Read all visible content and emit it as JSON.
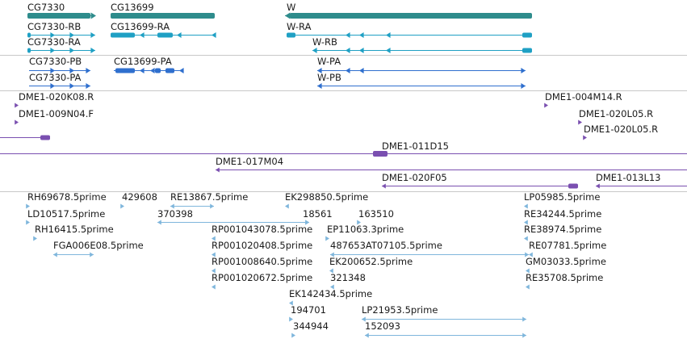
{
  "colors": {
    "gene": "#2e8c8c",
    "transcript": "#1fa0c4",
    "protein": "#2f6fce",
    "clone": "#7a4fb0",
    "est": "#7fb6dc",
    "divider": "#c8c8c8"
  },
  "genes": [
    {
      "id": "g1",
      "label": "CG7330"
    },
    {
      "id": "g2",
      "label": "CG13699"
    },
    {
      "id": "g3",
      "label": "W"
    }
  ],
  "transcripts": [
    {
      "id": "t1",
      "label": "CG7330-RB"
    },
    {
      "id": "t2",
      "label": "CG7330-RA"
    },
    {
      "id": "t3",
      "label": "CG13699-RA"
    },
    {
      "id": "t4",
      "label": "W-RA"
    },
    {
      "id": "t5",
      "label": "W-RB"
    }
  ],
  "proteins": [
    {
      "id": "p1",
      "label": "CG7330-PB"
    },
    {
      "id": "p2",
      "label": "CG7330-PA"
    },
    {
      "id": "p3",
      "label": "CG13699-PA"
    },
    {
      "id": "p4",
      "label": "W-PA"
    },
    {
      "id": "p5",
      "label": "W-PB"
    }
  ],
  "clones": [
    {
      "id": "c1",
      "label": "DME1-020K08.R"
    },
    {
      "id": "c2",
      "label": "DME1-009N04.F"
    },
    {
      "id": "c3",
      "label": "DME1-004M14.R"
    },
    {
      "id": "c4",
      "label": "DME1-020L05.R"
    },
    {
      "id": "c5",
      "label": "DME1-020L05.R"
    },
    {
      "id": "c6",
      "label": ""
    },
    {
      "id": "c7",
      "label": "DME1-011D15"
    },
    {
      "id": "c8",
      "label": "DME1-017M04"
    },
    {
      "id": "c9",
      "label": "DME1-020F05"
    },
    {
      "id": "c10",
      "label": "DME1-013L13"
    }
  ],
  "ests": [
    {
      "id": "e1",
      "label": "RH69678.5prime"
    },
    {
      "id": "e2",
      "label": "429608"
    },
    {
      "id": "e3",
      "label": "RE13867.5prime"
    },
    {
      "id": "e4",
      "label": "EK298850.5prime"
    },
    {
      "id": "e5",
      "label": "LP05985.5prime"
    },
    {
      "id": "e6",
      "label": "LD10517.5prime"
    },
    {
      "id": "e7",
      "label": "370398"
    },
    {
      "id": "e8",
      "label": "18561"
    },
    {
      "id": "e9",
      "label": "163510"
    },
    {
      "id": "e10",
      "label": "RE34244.5prime"
    },
    {
      "id": "e11",
      "label": "RH16415.5prime"
    },
    {
      "id": "e12",
      "label": "RP001043078.5prime"
    },
    {
      "id": "e13",
      "label": "EP11063.3prime"
    },
    {
      "id": "e14",
      "label": "RE38974.5prime"
    },
    {
      "id": "e15",
      "label": "FGA006E08.5prime"
    },
    {
      "id": "e16",
      "label": "RP001020408.5prime"
    },
    {
      "id": "e17",
      "label": "487653AT07105.5prime"
    },
    {
      "id": "e18",
      "label": "RE07781.5prime"
    },
    {
      "id": "e19",
      "label": "RP001008640.5prime"
    },
    {
      "id": "e20",
      "label": "EK200652.5prime"
    },
    {
      "id": "e21",
      "label": "GM03033.5prime"
    },
    {
      "id": "e22",
      "label": "321348"
    },
    {
      "id": "e23",
      "label": "RP001020672.5prime"
    },
    {
      "id": "e24",
      "label": "RE35708.5prime"
    },
    {
      "id": "e25",
      "label": "EK142434.5prime"
    },
    {
      "id": "e26",
      "label": "194701"
    },
    {
      "id": "e27",
      "label": "LP21953.5prime"
    },
    {
      "id": "e28",
      "label": "344944"
    },
    {
      "id": "e29",
      "label": "152093"
    }
  ]
}
